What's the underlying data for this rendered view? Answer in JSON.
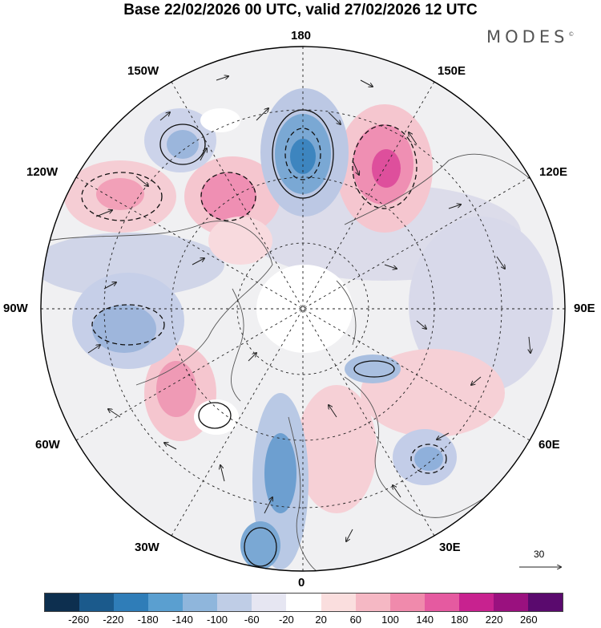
{
  "title": "Base 22/02/2026 00 UTC, valid 27/02/2026 12 UTC",
  "brand": "MODES",
  "brand_mark": "©",
  "longitude_labels": {
    "top": "180",
    "bottom": "0",
    "left": "90W",
    "right": "90E",
    "upper_left_1": "150W",
    "upper_left_2": "120W",
    "upper_right_1": "150E",
    "upper_right_2": "120E",
    "lower_left_1": "60W",
    "lower_left_2": "30W",
    "lower_right_1": "60E",
    "lower_right_2": "30E"
  },
  "reference_vector": {
    "value": "30",
    "icon": "arrow-right-icon"
  },
  "colorbar": {
    "colors": [
      "#0d2f4f",
      "#1b5a8c",
      "#2f7db8",
      "#5a9fd0",
      "#8fb6dc",
      "#bfcde6",
      "#e6e6f2",
      "#ffffff",
      "#fadede",
      "#f5b8c4",
      "#f08aac",
      "#e55aa0",
      "#c8228f",
      "#9a117f",
      "#5a0a6e"
    ],
    "tick_labels": [
      "-260",
      "-220",
      "-180",
      "-140",
      "-100",
      "-60",
      "-20",
      "20",
      "60",
      "100",
      "140",
      "180",
      "220",
      "260"
    ]
  }
}
